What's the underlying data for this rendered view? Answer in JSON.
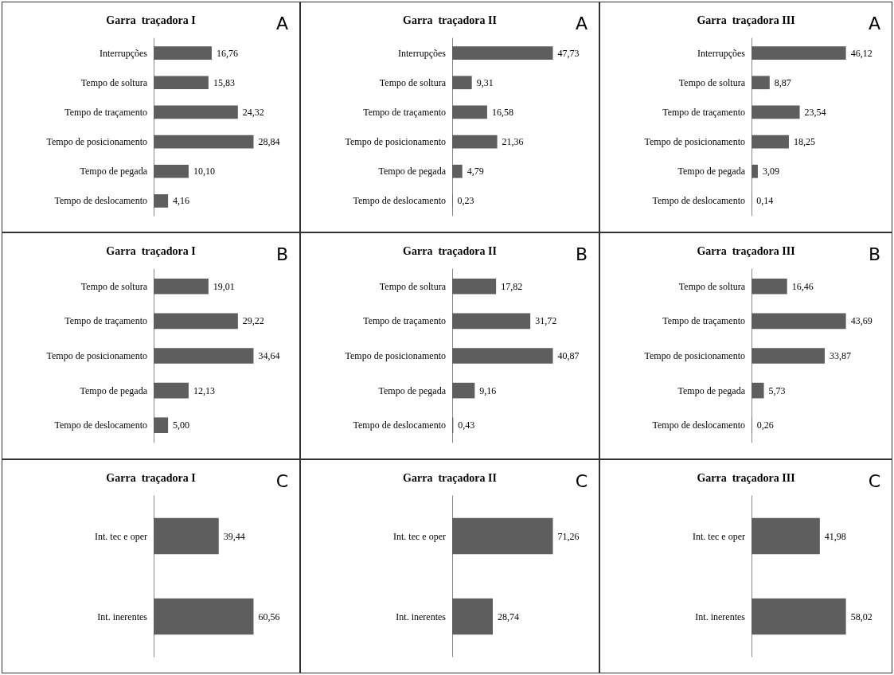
{
  "chart_data": [
    {
      "type": "bar",
      "orientation": "horizontal",
      "title": "Garra  traçadora I",
      "annotations": [
        "A"
      ],
      "categories": [
        "Interrupções",
        "Tempo de soltura",
        "Tempo de traçamento",
        "Tempo de posicionamento",
        "Tempo de pegada",
        "Tempo de deslocamento"
      ],
      "color": "#5e5e5e",
      "values": [
        16.76,
        15.83,
        24.32,
        28.84,
        10.1,
        4.16
      ],
      "value_labels": [
        "16,76",
        "15,83",
        "24,32",
        "28,84",
        "10,10",
        "4,16"
      ]
    },
    {
      "type": "bar",
      "orientation": "horizontal",
      "title": "Garra  traçadora II",
      "annotations": [
        "A"
      ],
      "categories": [
        "Interrupções",
        "Tempo de soltura",
        "Tempo de traçamento",
        "Tempo de posicionamento",
        "Tempo de pegada",
        "Tempo de deslocamento"
      ],
      "color": "#5e5e5e",
      "values": [
        47.73,
        9.31,
        16.58,
        21.36,
        4.79,
        0.23
      ],
      "value_labels": [
        "47,73",
        "9,31",
        "16,58",
        "21,36",
        "4,79",
        "0,23"
      ]
    },
    {
      "type": "bar",
      "orientation": "horizontal",
      "title": "Garra  traçadora III",
      "annotations": [
        "A"
      ],
      "categories": [
        "Interrupções",
        "Tempo de soltura",
        "Tempo de traçamento",
        "Tempo de posicionamento",
        "Tempo de pegada",
        "Tempo de deslocamento"
      ],
      "color": "#5e5e5e",
      "values": [
        46.12,
        8.87,
        23.54,
        18.25,
        3.09,
        0.14
      ],
      "value_labels": [
        "46,12",
        "8,87",
        "23,54",
        "18,25",
        "3,09",
        "0,14"
      ]
    },
    {
      "type": "bar",
      "orientation": "horizontal",
      "title": "Garra  traçadora I",
      "annotations": [
        "B"
      ],
      "categories": [
        "Tempo de soltura",
        "Tempo de traçamento",
        "Tempo de posicionamento",
        "Tempo de pegada",
        "Tempo de deslocamento"
      ],
      "color": "#5e5e5e",
      "values": [
        19.01,
        29.22,
        34.64,
        12.13,
        5.0
      ],
      "value_labels": [
        "19,01",
        "29,22",
        "34,64",
        "12,13",
        "5,00"
      ]
    },
    {
      "type": "bar",
      "orientation": "horizontal",
      "title": "Garra  traçadora II",
      "annotations": [
        "B"
      ],
      "categories": [
        "Tempo de soltura",
        "Tempo de traçamento",
        "Tempo de posicionamento",
        "Tempo de pegada",
        "Tempo de deslocamento"
      ],
      "color": "#5e5e5e",
      "values": [
        17.82,
        31.72,
        40.87,
        9.16,
        0.43
      ],
      "value_labels": [
        "17,82",
        "31,72",
        "40,87",
        "9,16",
        "0,43"
      ]
    },
    {
      "type": "bar",
      "orientation": "horizontal",
      "title": "Garra  traçadora III",
      "annotations": [
        "B"
      ],
      "categories": [
        "Tempo de soltura",
        "Tempo de traçamento",
        "Tempo de posicionamento",
        "Tempo de pegada",
        "Tempo de deslocamento"
      ],
      "color": "#5e5e5e",
      "values": [
        16.46,
        43.69,
        33.87,
        5.73,
        0.26
      ],
      "value_labels": [
        "16,46",
        "43,69",
        "33,87",
        "5,73",
        "0,26"
      ]
    },
    {
      "type": "bar",
      "orientation": "horizontal",
      "title": "Garra  traçadora I",
      "annotations": [
        "C"
      ],
      "categories": [
        "Int. tec e oper",
        "Int. inerentes"
      ],
      "color": "#5e5e5e",
      "values": [
        39.44,
        60.56
      ],
      "value_labels": [
        "39,44",
        "60,56"
      ]
    },
    {
      "type": "bar",
      "orientation": "horizontal",
      "title": "Garra  traçadora II",
      "annotations": [
        "C"
      ],
      "categories": [
        "Int. tec e oper",
        "Int. inerentes"
      ],
      "color": "#5e5e5e",
      "values": [
        71.26,
        28.74
      ],
      "value_labels": [
        "71,26",
        "28,74"
      ]
    },
    {
      "type": "bar",
      "orientation": "horizontal",
      "title": "Garra  traçadora III",
      "annotations": [
        "C"
      ],
      "categories": [
        "Int. tec e oper",
        "Int. inerentes"
      ],
      "color": "#5e5e5e",
      "values": [
        41.98,
        58.02
      ],
      "value_labels": [
        "41,98",
        "58,02"
      ]
    }
  ]
}
